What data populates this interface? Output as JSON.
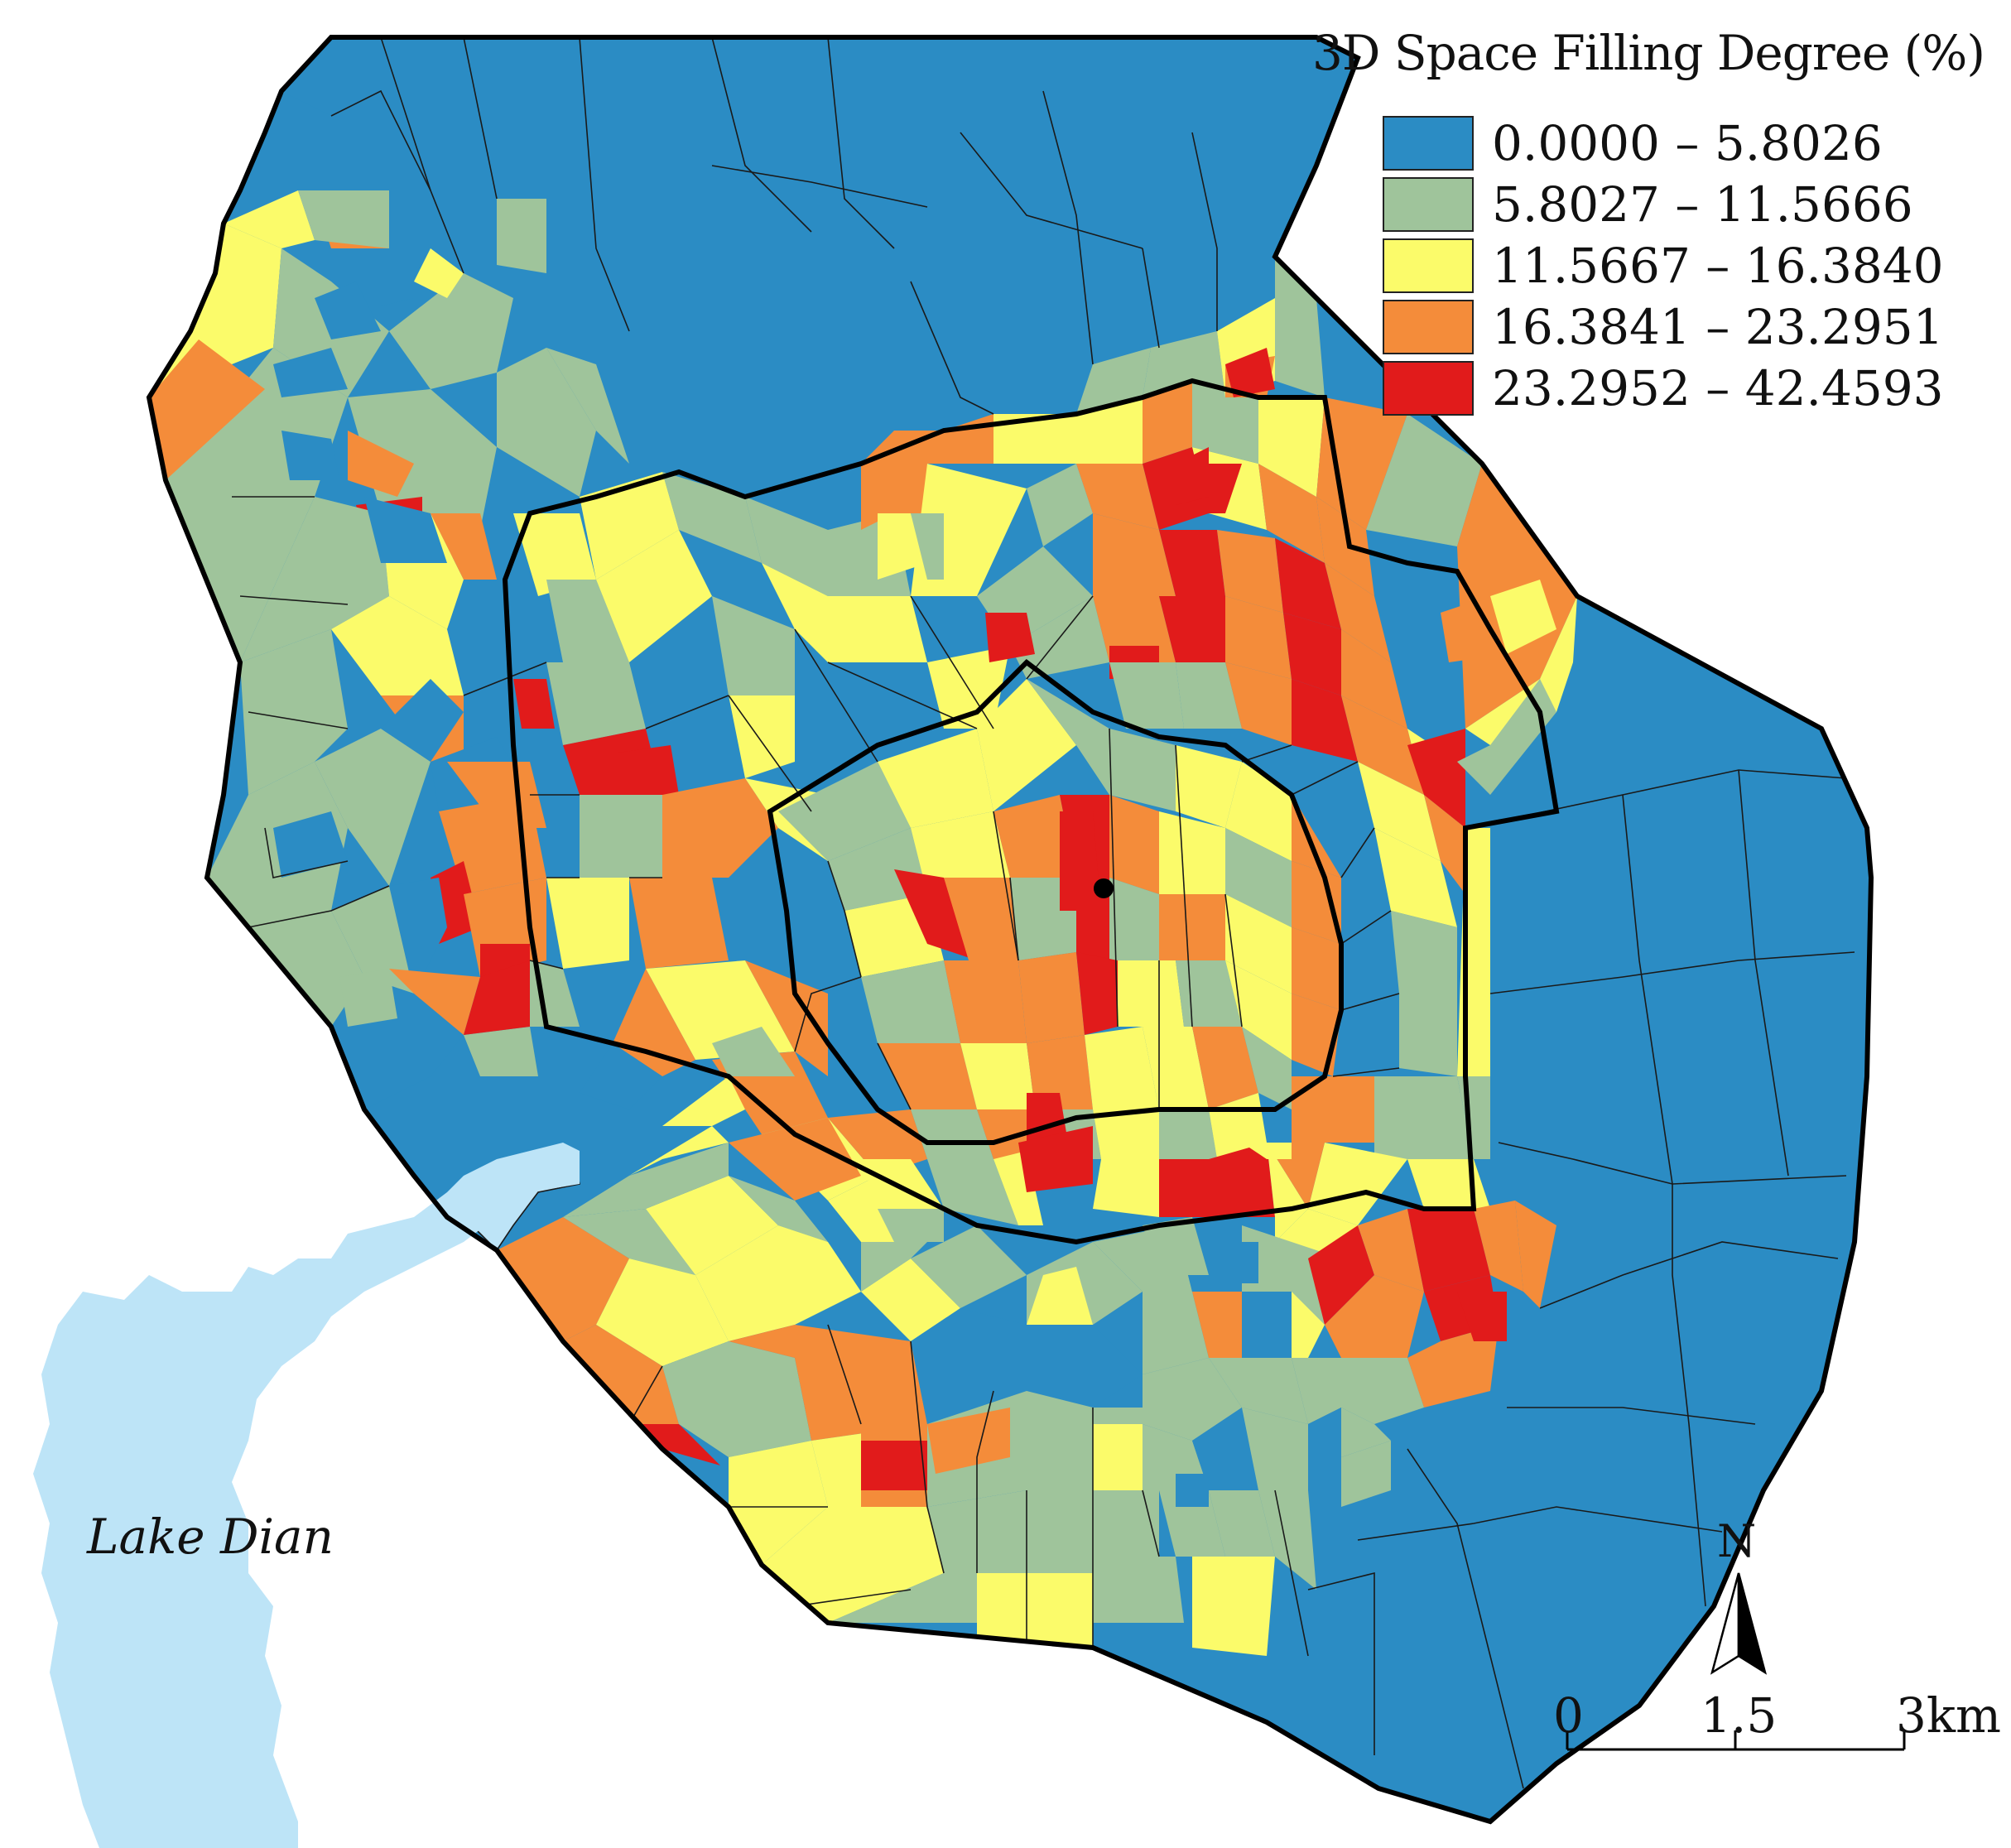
{
  "legend": {
    "title": "3D Space Filling Degree (%)",
    "classes": [
      {
        "label": "0.0000 – 5.8026",
        "color": "#2b8cc4"
      },
      {
        "label": "5.8027 – 11.5666",
        "color": "#9fc49b"
      },
      {
        "label": "11.5667 – 16.3840",
        "color": "#fbfb6a"
      },
      {
        "label": "16.3841 – 23.2951",
        "color": "#f48c3a"
      },
      {
        "label": "23.2952 – 42.4593",
        "color": "#e11b1b"
      }
    ]
  },
  "lake": {
    "label": "Lake Dian",
    "color": "#bde4f7"
  },
  "north_arrow": {
    "letter": "N"
  },
  "scale_bar": {
    "labels": [
      "0",
      "1.5",
      "3km"
    ]
  },
  "colors": {
    "boundary": "#000000",
    "block_line": "#1a1a1a",
    "center_marker": "#000000"
  }
}
